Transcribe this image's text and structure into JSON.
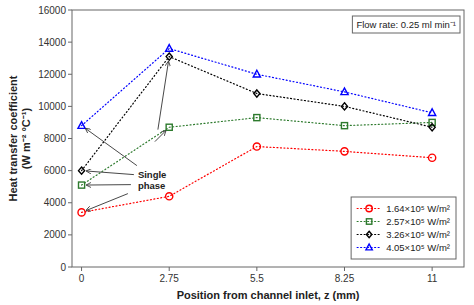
{
  "chart_data": {
    "type": "line",
    "x": [
      0,
      2.75,
      5.5,
      8.25,
      11
    ],
    "series": [
      {
        "name": "1.64×10⁵ W/m²",
        "color": "red",
        "marker": "circle",
        "line_style": "dotted",
        "values": [
          3400,
          4400,
          7500,
          7200,
          6800
        ]
      },
      {
        "name": "2.57×10⁵ W/m²",
        "color": "#2d7a2d",
        "marker": "square",
        "line_style": "dotted",
        "values": [
          5100,
          8700,
          9300,
          8800,
          9000
        ]
      },
      {
        "name": "3.26×10⁵ W/m²",
        "color": "black",
        "marker": "diamond",
        "line_style": "dotted",
        "values": [
          6000,
          13100,
          10800,
          10000,
          8700
        ]
      },
      {
        "name": "4.05×10⁵ W/m²",
        "color": "blue",
        "marker": "triangle",
        "line_style": "dotted",
        "values": [
          8800,
          13600,
          12000,
          10900,
          9600
        ]
      }
    ],
    "x_label": "Position from channel inlet, z (mm)",
    "y_label": "Heat transfer coefficient\n(W m⁻² °C⁻¹)",
    "xlim": [
      -0.3,
      12.0
    ],
    "ylim": [
      0,
      16000
    ],
    "xticks": [
      0,
      2.75,
      5.5,
      8.25,
      11
    ],
    "yticks": [
      0,
      2000,
      4000,
      6000,
      8000,
      10000,
      12000,
      14000,
      16000
    ],
    "grid": false,
    "legend": "lower right",
    "annotations": [
      "Single\nphase",
      "Flow rate: 0.25 ml min⁻¹"
    ]
  }
}
